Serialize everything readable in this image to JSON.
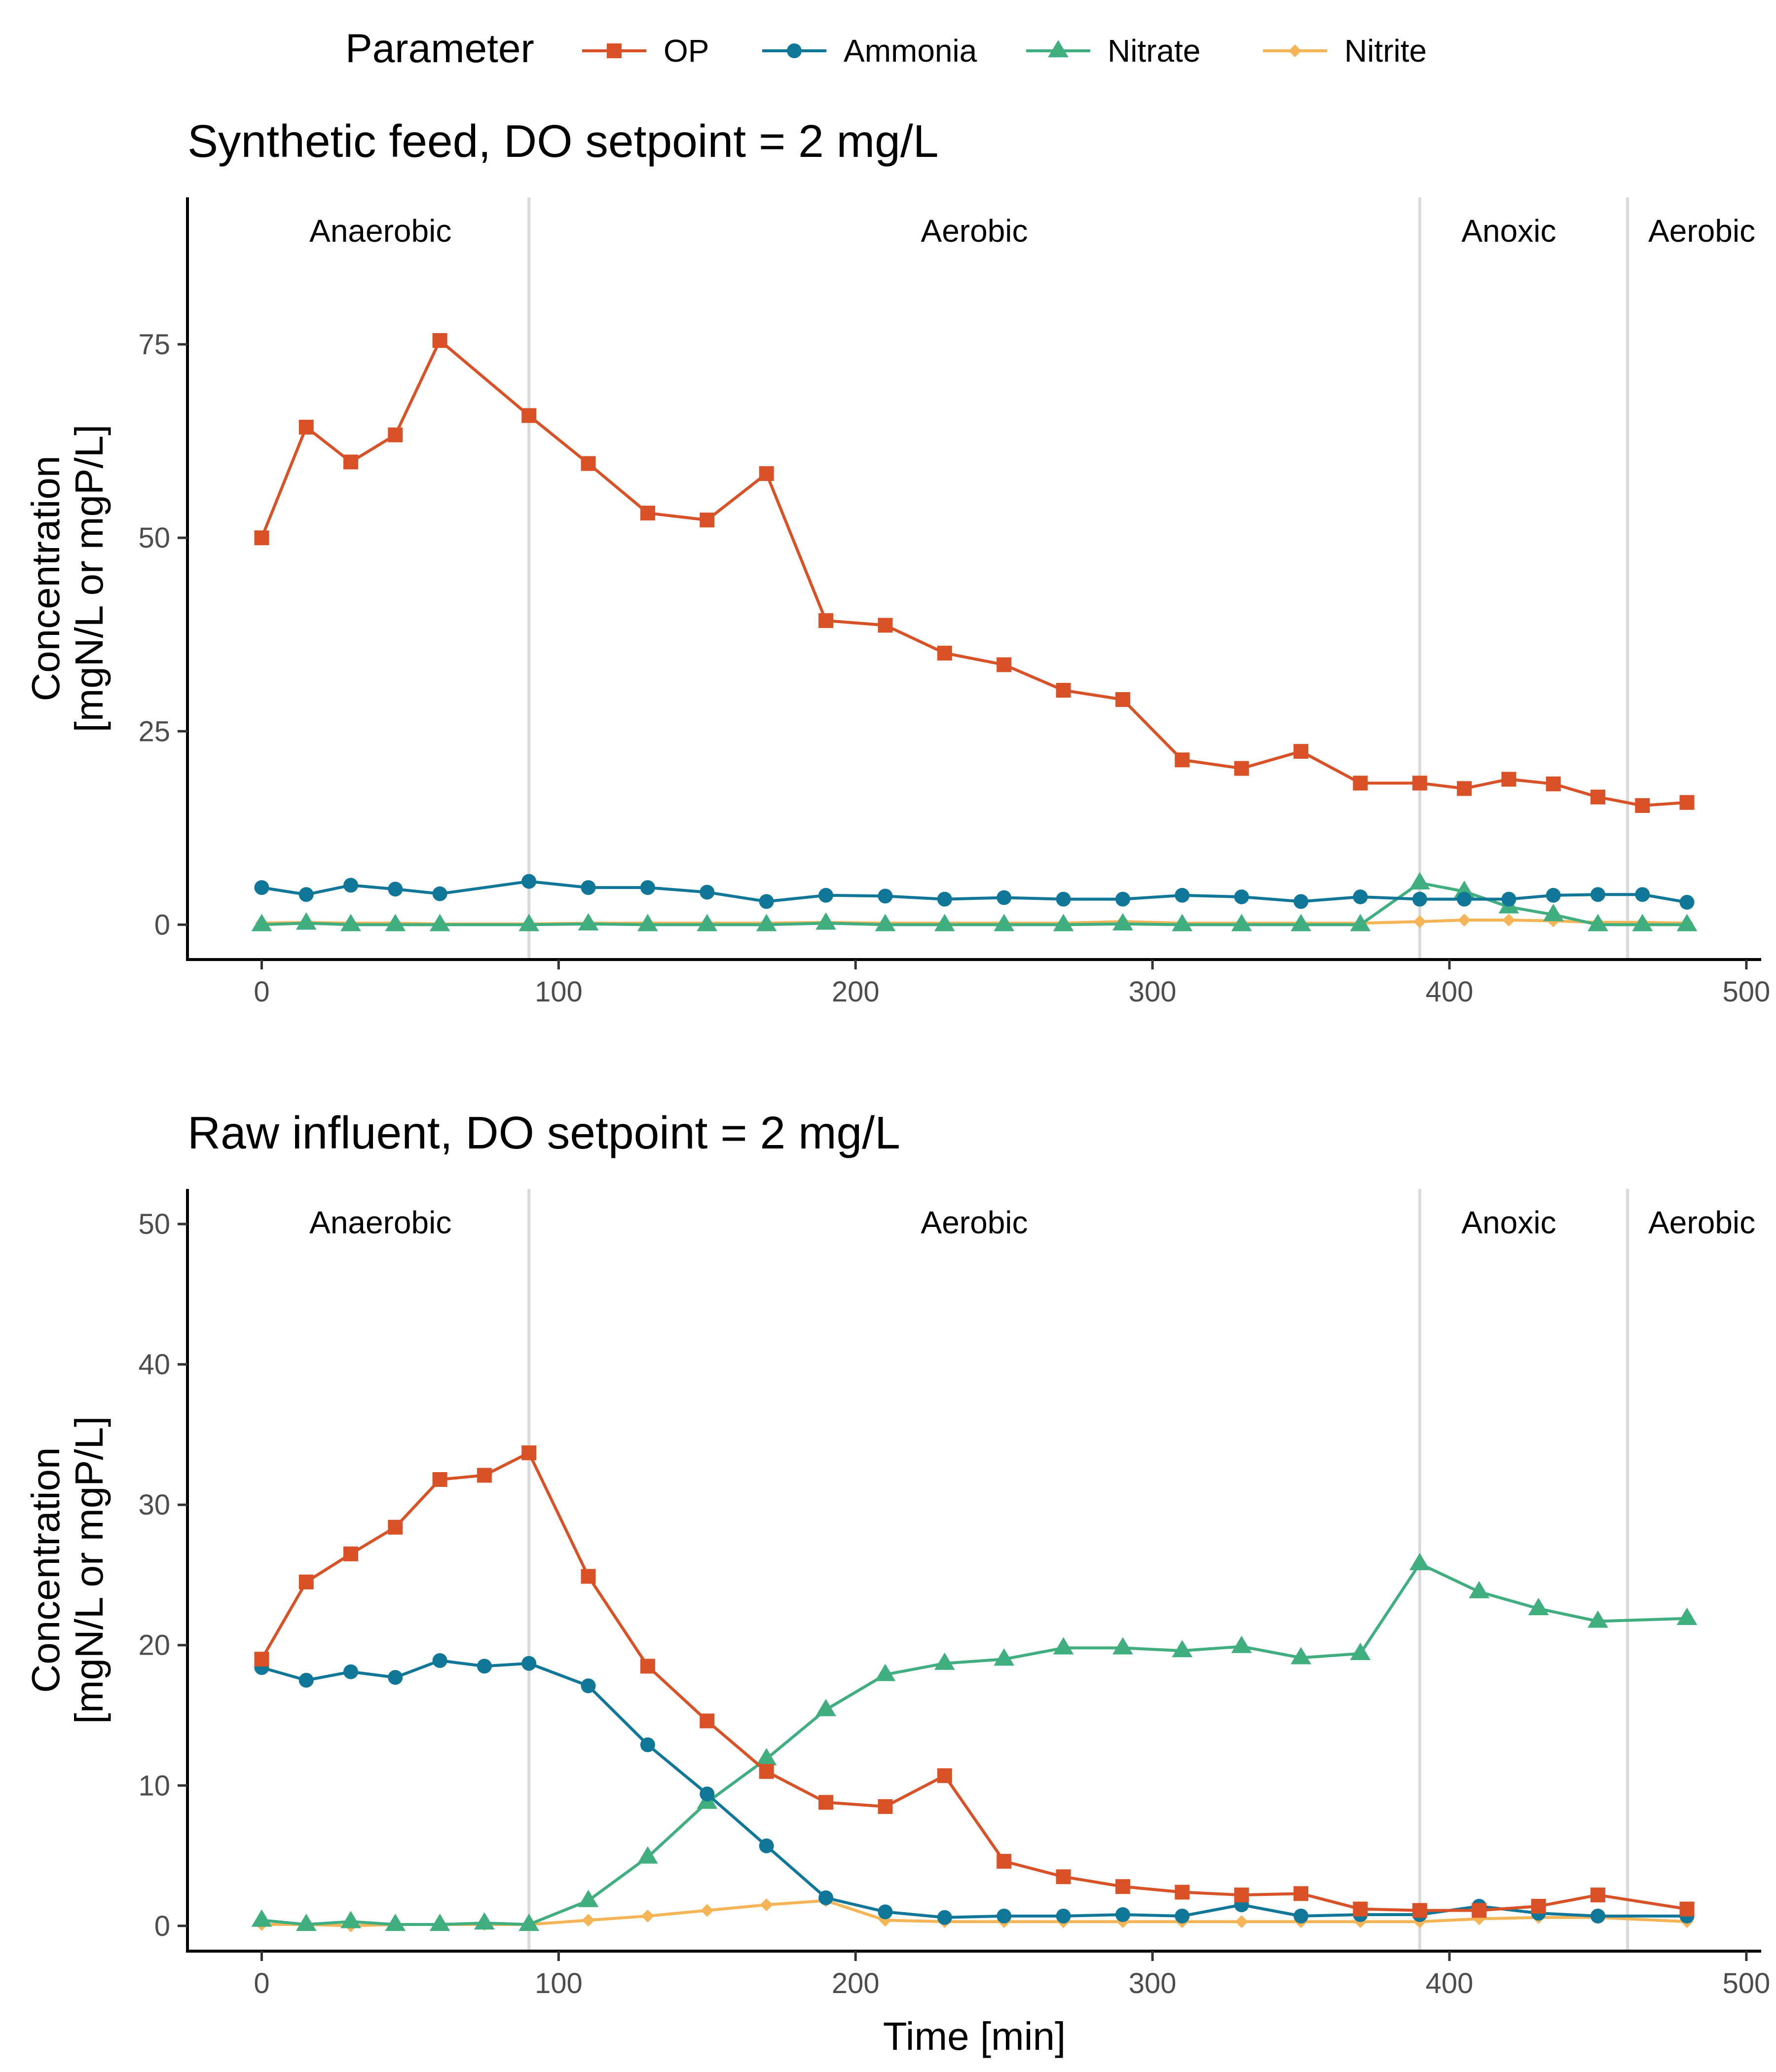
{
  "legend": {
    "title": "Parameter",
    "items": [
      {
        "name": "OP",
        "color": "#D95127",
        "marker": "square"
      },
      {
        "name": "Ammonia",
        "color": "#117799",
        "marker": "circle"
      },
      {
        "name": "Nitrate",
        "color": "#41AE80",
        "marker": "triangle"
      },
      {
        "name": "Nitrite",
        "color": "#F5B556",
        "marker": "diamond"
      }
    ]
  },
  "chart_data": [
    {
      "type": "line",
      "title": "Synthetic feed, DO setpoint = 2 mg/L",
      "xlabel": "",
      "ylabel": [
        "Concentration",
        "[mgN/L or mgP/L]"
      ],
      "xlim": [
        -25,
        505
      ],
      "ylim": [
        -4.5,
        94
      ],
      "xticks": [
        0,
        100,
        200,
        300,
        400,
        500
      ],
      "yticks": [
        0,
        25,
        50,
        75
      ],
      "grid": false,
      "legend_position": "top",
      "phase_lines": [
        90,
        390,
        460
      ],
      "phases": [
        {
          "label": "Anaerobic",
          "x": 40
        },
        {
          "label": "Aerobic",
          "x": 240
        },
        {
          "label": "Anoxic",
          "x": 420
        },
        {
          "label": "Aerobic",
          "x": 485
        }
      ],
      "series": [
        {
          "name": "OP",
          "x": [
            0,
            15,
            30,
            45,
            60,
            90,
            110,
            130,
            150,
            170,
            190,
            210,
            230,
            250,
            270,
            290,
            310,
            330,
            350,
            370,
            390,
            405,
            420,
            435,
            450,
            465,
            480
          ],
          "y": [
            50,
            64.3,
            59.8,
            63.3,
            75.5,
            65.8,
            59.6,
            53.2,
            52.3,
            58.3,
            39.3,
            38.7,
            35.1,
            33.6,
            30.3,
            29.1,
            21.3,
            20.2,
            22.4,
            18.3,
            18.3,
            17.6,
            18.8,
            18.2,
            16.5,
            15.4,
            15.8
          ]
        },
        {
          "name": "Ammonia",
          "x": [
            0,
            15,
            30,
            45,
            60,
            90,
            110,
            130,
            150,
            170,
            190,
            210,
            230,
            250,
            270,
            290,
            310,
            330,
            350,
            370,
            390,
            405,
            420,
            435,
            450,
            465,
            480
          ],
          "y": [
            4.8,
            3.9,
            5.1,
            4.6,
            4.0,
            5.6,
            4.8,
            4.8,
            4.2,
            3.0,
            3.8,
            3.7,
            3.3,
            3.5,
            3.3,
            3.3,
            3.8,
            3.6,
            3.0,
            3.6,
            3.3,
            3.3,
            3.3,
            3.8,
            3.9,
            3.9,
            2.9
          ]
        },
        {
          "name": "Nitrate",
          "x": [
            0,
            15,
            30,
            45,
            60,
            90,
            110,
            130,
            150,
            170,
            190,
            210,
            230,
            250,
            270,
            290,
            310,
            330,
            350,
            370,
            390,
            405,
            420,
            435,
            450,
            465,
            480
          ],
          "y": [
            0,
            0.2,
            0,
            0,
            0,
            0,
            0.1,
            0,
            0,
            0,
            0.2,
            0,
            0,
            0,
            0,
            0.1,
            0,
            0,
            0,
            0,
            5.4,
            4.3,
            2.3,
            1.3,
            0,
            0,
            0
          ]
        },
        {
          "name": "Nitrite",
          "x": [
            0,
            15,
            30,
            45,
            60,
            90,
            110,
            130,
            150,
            170,
            190,
            210,
            230,
            250,
            270,
            290,
            310,
            330,
            350,
            370,
            390,
            405,
            420,
            435,
            450,
            465,
            480
          ],
          "y": [
            0.2,
            0.3,
            0.2,
            0.2,
            0.1,
            0.1,
            0.2,
            0.2,
            0.2,
            0.2,
            0.3,
            0.2,
            0.2,
            0.2,
            0.2,
            0.4,
            0.2,
            0.2,
            0.2,
            0.2,
            0.4,
            0.6,
            0.6,
            0.5,
            0.3,
            0.3,
            0.2
          ]
        }
      ]
    },
    {
      "type": "line",
      "title": "Raw influent, DO setpoint = 2 mg/L",
      "xlabel": "Time [min]",
      "ylabel": [
        "Concentration",
        "[mgN/L or mgP/L]"
      ],
      "xlim": [
        -25,
        505
      ],
      "ylim": [
        -1.8,
        52.5
      ],
      "xticks": [
        0,
        100,
        200,
        300,
        400,
        500
      ],
      "yticks": [
        0,
        10,
        20,
        30,
        40,
        50
      ],
      "grid": false,
      "legend_position": "top",
      "phase_lines": [
        90,
        390,
        460
      ],
      "phases": [
        {
          "label": "Anaerobic",
          "x": 40
        },
        {
          "label": "Aerobic",
          "x": 240
        },
        {
          "label": "Anoxic",
          "x": 420
        },
        {
          "label": "Aerobic",
          "x": 485
        }
      ],
      "series": [
        {
          "name": "OP",
          "x": [
            0,
            15,
            30,
            45,
            60,
            75,
            90,
            110,
            130,
            150,
            170,
            190,
            210,
            230,
            250,
            270,
            290,
            310,
            330,
            350,
            370,
            390,
            410,
            430,
            450,
            480
          ],
          "y": [
            19.0,
            24.5,
            26.5,
            28.4,
            31.8,
            32.1,
            33.7,
            24.9,
            18.5,
            14.6,
            11.0,
            8.8,
            8.5,
            10.7,
            4.6,
            3.5,
            2.8,
            2.4,
            2.2,
            2.3,
            1.2,
            1.1,
            1.1,
            1.4,
            2.2,
            1.2
          ]
        },
        {
          "name": "Ammonia",
          "x": [
            0,
            15,
            30,
            45,
            60,
            75,
            90,
            110,
            130,
            150,
            170,
            190,
            210,
            230,
            250,
            270,
            290,
            310,
            330,
            350,
            370,
            390,
            410,
            430,
            450,
            480
          ],
          "y": [
            18.4,
            17.5,
            18.1,
            17.7,
            18.9,
            18.5,
            18.7,
            17.1,
            12.9,
            9.4,
            5.7,
            2.0,
            1.0,
            0.6,
            0.7,
            0.7,
            0.8,
            0.7,
            1.5,
            0.7,
            0.8,
            0.8,
            1.4,
            0.9,
            0.7,
            0.7
          ]
        },
        {
          "name": "Nitrate",
          "x": [
            0,
            15,
            30,
            45,
            60,
            75,
            90,
            110,
            130,
            150,
            170,
            190,
            210,
            230,
            250,
            270,
            290,
            310,
            330,
            350,
            370,
            390,
            410,
            430,
            450,
            480
          ],
          "y": [
            0.4,
            0.1,
            0.3,
            0.1,
            0.1,
            0.2,
            0.1,
            1.8,
            4.9,
            8.8,
            11.9,
            15.4,
            17.9,
            18.7,
            19.0,
            19.8,
            19.8,
            19.6,
            19.9,
            19.1,
            19.4,
            25.8,
            23.8,
            22.6,
            21.7,
            21.9
          ]
        },
        {
          "name": "Nitrite",
          "x": [
            0,
            15,
            30,
            45,
            60,
            75,
            90,
            110,
            130,
            150,
            170,
            190,
            210,
            230,
            250,
            270,
            290,
            310,
            330,
            350,
            370,
            390,
            410,
            430,
            450,
            480
          ],
          "y": [
            0.1,
            0.1,
            0,
            0.1,
            0.1,
            0.1,
            0.1,
            0.4,
            0.7,
            1.1,
            1.5,
            1.8,
            0.4,
            0.3,
            0.3,
            0.3,
            0.3,
            0.3,
            0.3,
            0.3,
            0.3,
            0.3,
            0.5,
            0.6,
            0.6,
            0.3
          ]
        }
      ]
    }
  ]
}
